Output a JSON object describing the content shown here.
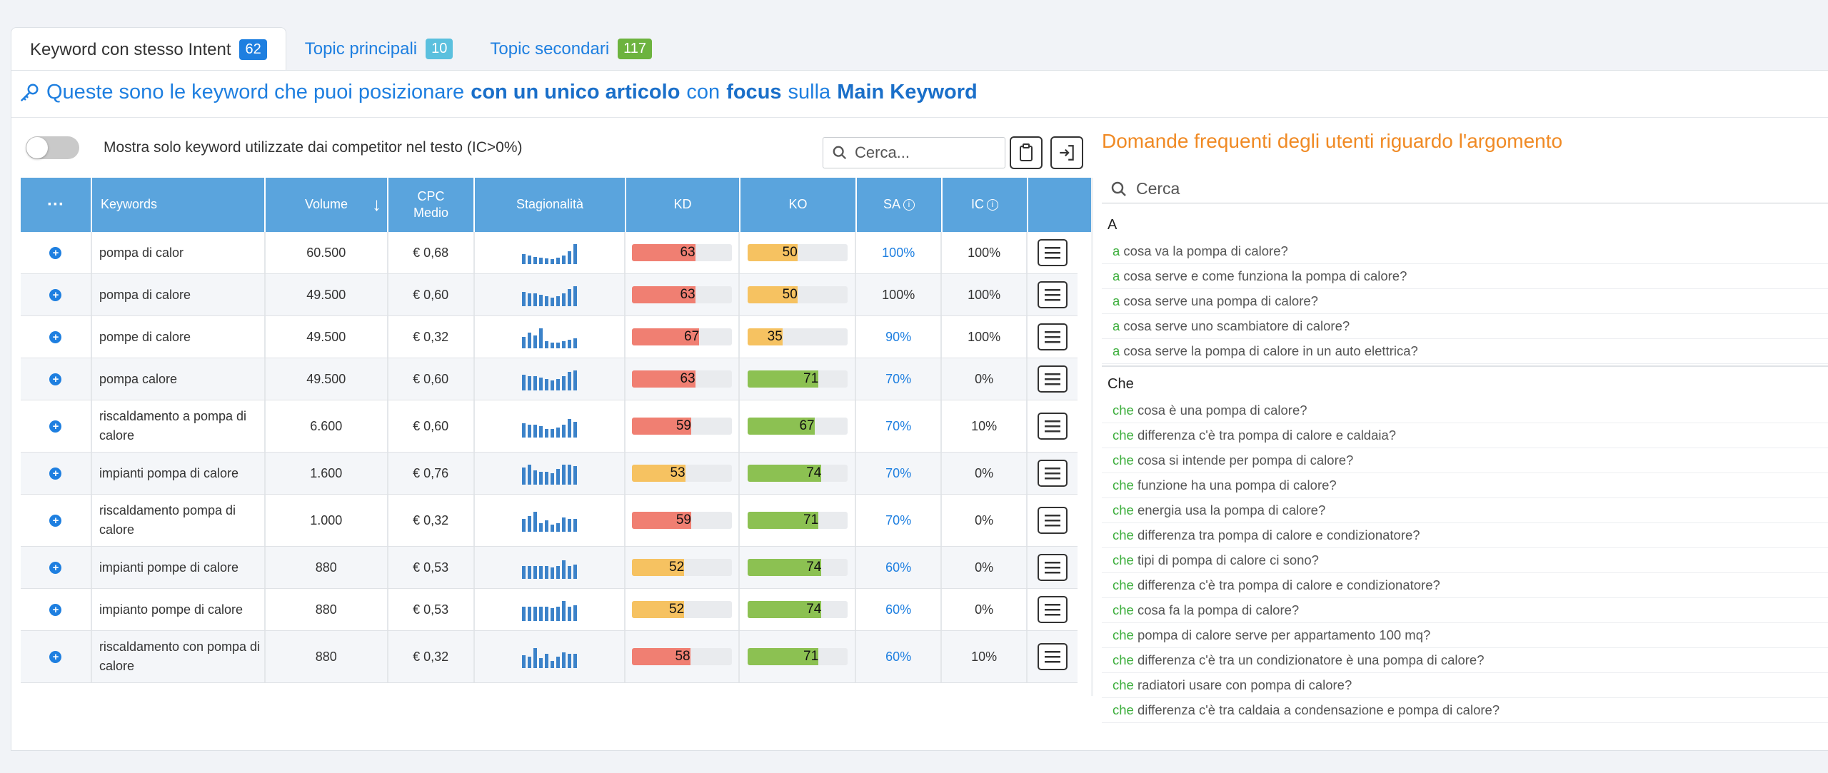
{
  "tabs": [
    {
      "label": "Keyword con stesso Intent",
      "count": "62",
      "badge_color": "#1e7fe0"
    },
    {
      "label": "Topic principali",
      "count": "10",
      "badge_color": "#5bc0de"
    },
    {
      "label": "Topic secondari",
      "count": "117",
      "badge_color": "#6db33f"
    }
  ],
  "headline": {
    "part1": "Queste sono le keyword che puoi posizionare",
    "bold1": "con un unico articolo",
    "part2": "con",
    "bold2": "focus",
    "part3": "sulla",
    "bold3": "Main Keyword"
  },
  "filter": {
    "toggle_label": "Mostra solo keyword utilizzate dai competitor nel testo (IC>0%)",
    "toggle_on": false
  },
  "table_search": {
    "placeholder": "Cerca..."
  },
  "columns": {
    "menu": "···",
    "keywords": "Keywords",
    "volume": "Volume",
    "sort": "↓",
    "cpc_line1": "CPC",
    "cpc_line2": "Medio",
    "seasonality": "Stagionalità",
    "kd": "KD",
    "ko": "KO",
    "sa": "SA",
    "ic": "IC",
    "info": "i"
  },
  "rows": [
    {
      "keyword": "pompa di calor",
      "volume": "60.500",
      "cpc": "€ 0,68",
      "kd": 63,
      "kd_color": "#f07f72",
      "ko": 50,
      "ko_color": "#f6c261",
      "sa": "100%",
      "sa_blue": true,
      "ic": "100%",
      "trend": [
        14,
        12,
        10,
        9,
        8,
        7,
        9,
        12,
        18,
        28
      ]
    },
    {
      "keyword": "pompa di calore",
      "volume": "49.500",
      "cpc": "€ 0,60",
      "kd": 63,
      "kd_color": "#f07f72",
      "ko": 50,
      "ko_color": "#f6c261",
      "sa": "100%",
      "sa_blue": false,
      "ic": "100%",
      "trend": [
        20,
        18,
        18,
        16,
        14,
        12,
        14,
        18,
        24,
        28
      ]
    },
    {
      "keyword": "pompe di calore",
      "volume": "49.500",
      "cpc": "€ 0,32",
      "kd": 67,
      "kd_color": "#f07f72",
      "ko": 35,
      "ko_color": "#f6c261",
      "sa": "90%",
      "sa_blue": true,
      "ic": "100%",
      "trend": [
        16,
        22,
        18,
        28,
        10,
        8,
        8,
        10,
        12,
        14
      ]
    },
    {
      "keyword": "pompa calore",
      "volume": "49.500",
      "cpc": "€ 0,60",
      "kd": 63,
      "kd_color": "#f07f72",
      "ko": 71,
      "ko_color": "#8cc152",
      "sa": "70%",
      "sa_blue": true,
      "ic": "0%",
      "trend": [
        22,
        20,
        20,
        18,
        16,
        14,
        16,
        20,
        26,
        28
      ]
    },
    {
      "keyword": "riscaldamento a pompa di calore",
      "volume": "6.600",
      "cpc": "€ 0,60",
      "kd": 59,
      "kd_color": "#f07f72",
      "ko": 67,
      "ko_color": "#8cc152",
      "sa": "70%",
      "sa_blue": true,
      "ic": "10%",
      "trend": [
        20,
        18,
        18,
        16,
        12,
        12,
        14,
        18,
        26,
        22
      ]
    },
    {
      "keyword": "impianti pompa di calore",
      "volume": "1.600",
      "cpc": "€ 0,76",
      "kd": 53,
      "kd_color": "#f6c261",
      "ko": 74,
      "ko_color": "#8cc152",
      "sa": "70%",
      "sa_blue": true,
      "ic": "0%",
      "trend": [
        24,
        28,
        20,
        18,
        18,
        16,
        22,
        28,
        28,
        26
      ]
    },
    {
      "keyword": "riscaldamento pompa di calore",
      "volume": "1.000",
      "cpc": "€ 0,32",
      "kd": 59,
      "kd_color": "#f07f72",
      "ko": 71,
      "ko_color": "#8cc152",
      "sa": "70%",
      "sa_blue": true,
      "ic": "0%",
      "trend": [
        18,
        22,
        28,
        12,
        16,
        10,
        12,
        20,
        18,
        18
      ]
    },
    {
      "keyword": "impianti pompe di calore",
      "volume": "880",
      "cpc": "€ 0,53",
      "kd": 52,
      "kd_color": "#f6c261",
      "ko": 74,
      "ko_color": "#8cc152",
      "sa": "60%",
      "sa_blue": true,
      "ic": "0%",
      "trend": [
        18,
        18,
        18,
        18,
        18,
        16,
        18,
        26,
        18,
        20
      ]
    },
    {
      "keyword": "impianto pompe di calore",
      "volume": "880",
      "cpc": "€ 0,53",
      "kd": 52,
      "kd_color": "#f6c261",
      "ko": 74,
      "ko_color": "#8cc152",
      "sa": "60%",
      "sa_blue": true,
      "ic": "0%",
      "trend": [
        20,
        20,
        20,
        20,
        20,
        18,
        20,
        28,
        20,
        22
      ]
    },
    {
      "keyword": "riscaldamento con pompa di calore",
      "volume": "880",
      "cpc": "€ 0,32",
      "kd": 58,
      "kd_color": "#f07f72",
      "ko": 71,
      "ko_color": "#8cc152",
      "sa": "60%",
      "sa_blue": true,
      "ic": "10%",
      "trend": [
        18,
        16,
        28,
        14,
        20,
        10,
        16,
        22,
        20,
        20
      ]
    }
  ],
  "faq": {
    "title": "Domande frequenti degli utenti riguardo l'argomento",
    "search_placeholder": "Cerca",
    "groups": [
      {
        "label": "A",
        "items": [
          "a cosa va la pompa di calore?",
          "a cosa serve e come funziona la pompa di calore?",
          "a cosa serve una pompa di calore?",
          "a cosa serve uno scambiatore di calore?",
          "a cosa serve la pompa di calore in un auto elettrica?"
        ]
      },
      {
        "label": "Che",
        "items": [
          "che cosa è una pompa di calore?",
          "che differenza c'è tra pompa di calore e caldaia?",
          "che cosa si intende per pompa di calore?",
          "che funzione ha una pompa di calore?",
          "che energia usa la pompa di calore?",
          "che differenza tra pompa di calore e condizionatore?",
          "che tipi di pompa di calore ci sono?",
          "che differenza c'è tra pompa di calore e condizionatore?",
          "che cosa fa la pompa di calore?",
          "che pompa di calore serve per appartamento 100 mq?",
          "che differenza c'è tra un condizionatore è una pompa di calore?",
          "che radiatori usare con pompa di calore?",
          "che differenza c'è tra caldaia a condensazione e pompa di calore?"
        ]
      }
    ]
  },
  "colors": {
    "accent": "#1e7fe0",
    "header_blue": "#5aa4dd",
    "faq_title": "#f08a24",
    "highlight_green": "#3cae3c"
  }
}
